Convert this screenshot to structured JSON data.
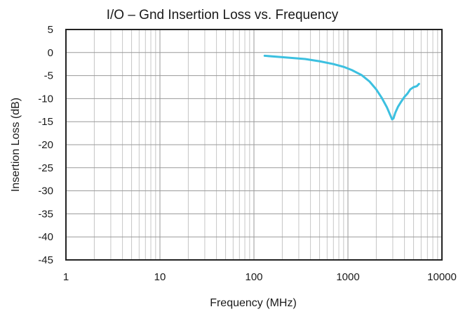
{
  "chart_data": {
    "type": "line",
    "title": "I/O – Gnd Insertion Loss vs. Frequency",
    "xlabel": "Frequency (MHz)",
    "ylabel": "Insertion Loss (dB)",
    "x_scale": "log",
    "xlim": [
      1,
      10000
    ],
    "ylim": [
      -45,
      5
    ],
    "x_ticks": [
      1,
      10,
      100,
      1000,
      10000
    ],
    "x_tick_labels": [
      "1",
      "10",
      "100",
      "1000",
      "10000"
    ],
    "y_ticks": [
      5,
      0,
      -5,
      -10,
      -15,
      -20,
      -25,
      -30,
      -35,
      -40,
      -45
    ],
    "y_tick_labels": [
      "5",
      "0",
      "-5",
      "-10",
      "-15",
      "-20",
      "-25",
      "-30",
      "-35",
      "-40",
      "-45"
    ],
    "grid": true,
    "series": [
      {
        "color": "#3cc0e0",
        "x": [
          130,
          200,
          350,
          500,
          700,
          900,
          1100,
          1400,
          1700,
          2000,
          2300,
          2600,
          2850,
          2950,
          3050,
          3200,
          3400,
          3700,
          4000,
          4300,
          4600,
          5000,
          5400,
          5700
        ],
        "y": [
          -0.7,
          -1.0,
          -1.4,
          -1.9,
          -2.5,
          -3.1,
          -3.8,
          -4.9,
          -6.3,
          -8.0,
          -9.9,
          -11.9,
          -13.8,
          -14.5,
          -14.3,
          -13.0,
          -11.8,
          -10.6,
          -9.6,
          -8.9,
          -8.0,
          -7.5,
          -7.3,
          -6.8
        ]
      }
    ]
  }
}
